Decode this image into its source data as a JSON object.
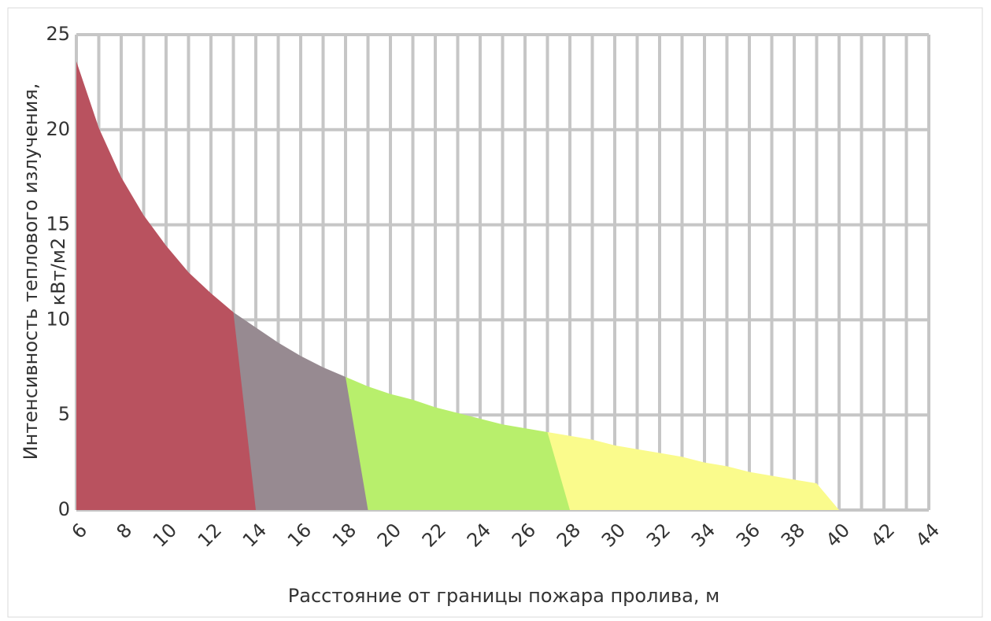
{
  "chart_data": {
    "type": "area",
    "ylabel": [
      "Интенсивность теплового излучения,",
      "кВт/м2"
    ],
    "xlabel": "Расстояние от границы пожара пролива, м",
    "x": [
      6,
      7,
      8,
      9,
      10,
      11,
      12,
      13,
      14,
      15,
      16,
      17,
      18,
      19,
      20,
      21,
      22,
      23,
      24,
      25,
      26,
      27,
      28,
      29,
      30,
      31,
      32,
      33,
      34,
      35,
      36,
      37,
      38,
      39,
      40,
      41,
      42,
      43,
      44
    ],
    "series": [
      {
        "color": "#b9525f",
        "values": [
          23.6,
          20.1,
          17.5,
          15.5,
          13.9,
          12.5,
          11.4,
          10.4,
          0,
          null,
          null,
          null,
          null,
          null,
          null,
          null,
          null,
          null,
          null,
          null,
          null,
          null,
          null,
          null,
          null,
          null,
          null,
          null,
          null,
          null,
          null,
          null,
          null,
          null,
          null,
          null,
          null,
          null,
          null
        ]
      },
      {
        "color": "#978a91",
        "values": [
          null,
          null,
          null,
          null,
          null,
          null,
          null,
          10.4,
          9.6,
          8.8,
          8.1,
          7.5,
          7.0,
          0,
          null,
          null,
          null,
          null,
          null,
          null,
          null,
          null,
          null,
          null,
          null,
          null,
          null,
          null,
          null,
          null,
          null,
          null,
          null,
          null,
          null,
          null,
          null,
          null,
          null
        ]
      },
      {
        "color": "#b8ef6c",
        "values": [
          null,
          null,
          null,
          null,
          null,
          null,
          null,
          null,
          null,
          null,
          null,
          null,
          7.0,
          6.5,
          6.1,
          5.8,
          5.4,
          5.1,
          4.8,
          4.5,
          4.3,
          4.1,
          0,
          null,
          null,
          null,
          null,
          null,
          null,
          null,
          null,
          null,
          null,
          null,
          null,
          null,
          null,
          null,
          null
        ]
      },
      {
        "color": "#fafb8c",
        "values": [
          null,
          null,
          null,
          null,
          null,
          null,
          null,
          null,
          null,
          null,
          null,
          null,
          null,
          null,
          null,
          null,
          null,
          null,
          null,
          null,
          null,
          4.1,
          3.9,
          3.7,
          3.4,
          3.2,
          3.0,
          2.8,
          2.5,
          2.3,
          2.0,
          1.8,
          1.6,
          1.4,
          0,
          null,
          null,
          null,
          null
        ]
      }
    ],
    "xlim": [
      6,
      44
    ],
    "xticks": [
      6,
      8,
      10,
      12,
      14,
      16,
      18,
      20,
      22,
      24,
      26,
      28,
      30,
      32,
      34,
      36,
      38,
      40,
      42,
      44
    ],
    "ylim": [
      0,
      25
    ],
    "yticks": [
      0,
      5,
      10,
      15,
      20,
      25
    ],
    "grid": true
  }
}
